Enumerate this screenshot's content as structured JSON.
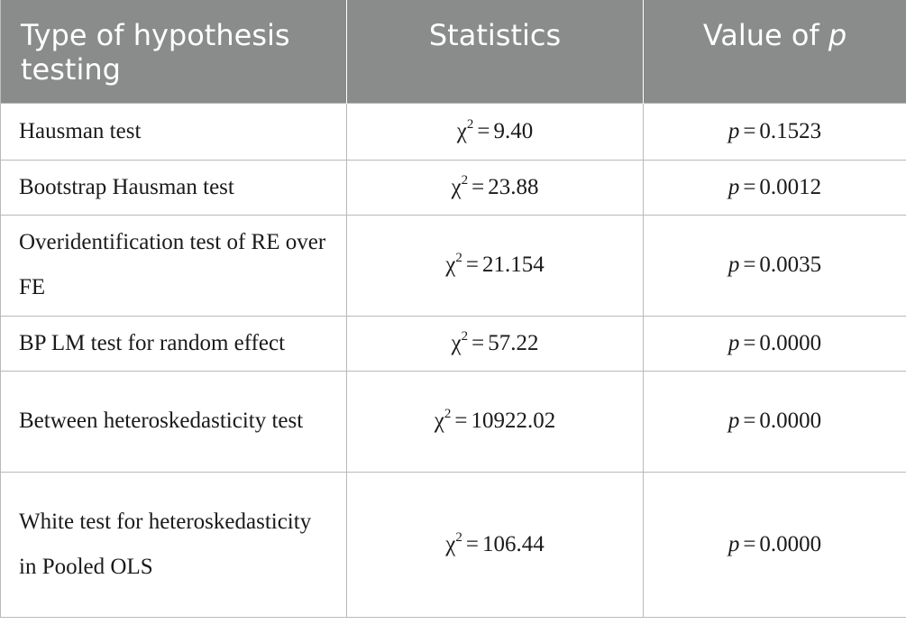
{
  "table": {
    "headers": {
      "type": "Type of hypothesis testing",
      "statistics": "Statistics",
      "pvalue_prefix": "Value of ",
      "pvalue_var": "p"
    },
    "rows": [
      {
        "test": "Hausman test",
        "stat_symbol": "χ",
        "stat_sup": "2",
        "stat_value": "9.40",
        "p_symbol": "p",
        "p_value": "0.1523"
      },
      {
        "test": "Bootstrap Hausman test",
        "stat_symbol": "χ",
        "stat_sup": "2",
        "stat_value": "23.88",
        "p_symbol": "p",
        "p_value": "0.0012"
      },
      {
        "test": "Overidentification test of RE over FE",
        "stat_symbol": "χ",
        "stat_sup": "2",
        "stat_value": "21.154",
        "p_symbol": "p",
        "p_value": "0.0035"
      },
      {
        "test": "BP LM test for random effect",
        "stat_symbol": "χ",
        "stat_sup": "2",
        "stat_value": "57.22",
        "p_symbol": "p",
        "p_value": "0.0000"
      },
      {
        "test": "Between heteroskedasticity test",
        "stat_symbol": "χ",
        "stat_sup": "2",
        "stat_value": "10922.02",
        "p_symbol": "p",
        "p_value": "0.0000"
      },
      {
        "test": "White test for heteroskedasticity in Pooled OLS",
        "stat_symbol": "χ",
        "stat_sup": "2",
        "stat_value": "106.44",
        "p_symbol": "p",
        "p_value": "0.0000"
      }
    ],
    "equals": "="
  },
  "colors": {
    "header_bg": "#8a8c8b",
    "header_text": "#ffffff",
    "border": "#b9b9b9"
  }
}
